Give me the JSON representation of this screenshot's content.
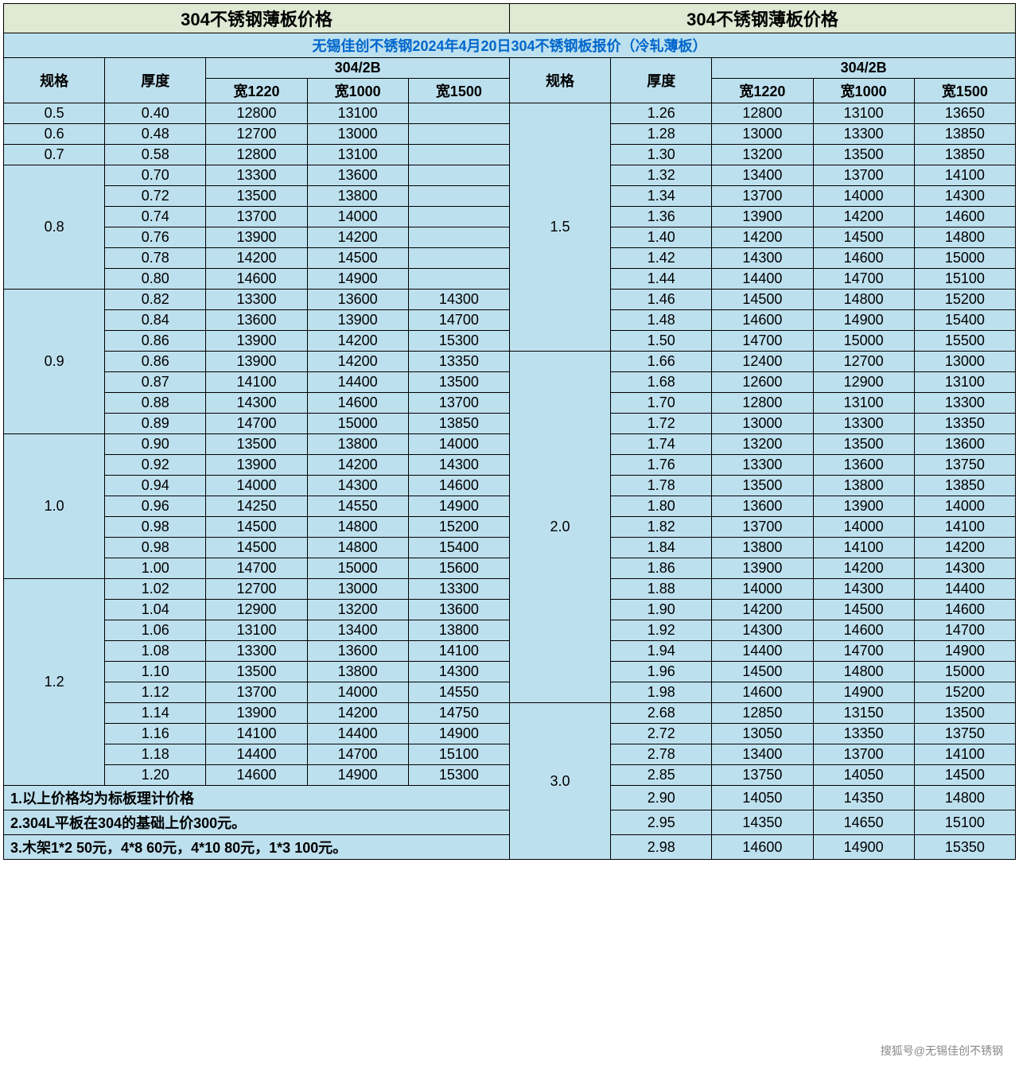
{
  "colors": {
    "title_bg": "#dfe9d3",
    "data_bg": "#bde0ee",
    "border": "#000000",
    "banner_text": "#0066cc"
  },
  "fonts": {
    "title_size_pt": 22,
    "header_size_pt": 18,
    "data_size_pt": 18
  },
  "title_left": "304不锈钢薄板价格",
  "title_right": "304不锈钢薄板价格",
  "banner": "无锡佳创不锈钢2024年4月20日304不锈钢板报价（冷轧薄板）",
  "headers": {
    "spec": "规格",
    "thickness": "厚度",
    "group": "304/2B",
    "w1220": "宽1220",
    "w1000": "宽1000",
    "w1500": "宽1500"
  },
  "notes": [
    "1.以上价格均为标板理计价格",
    "2.304L平板在304的基础上价300元。",
    "3.木架1*2 50元，4*8 60元，4*10 80元，1*3 100元。"
  ],
  "watermark_bottom": "搜狐号@无锡佳创不锈钢",
  "left": [
    {
      "spec": "0.5",
      "rows": [
        {
          "t": "0.40",
          "v": [
            "12800",
            "13100",
            ""
          ]
        }
      ]
    },
    {
      "spec": "0.6",
      "rows": [
        {
          "t": "0.48",
          "v": [
            "12700",
            "13000",
            ""
          ]
        }
      ]
    },
    {
      "spec": "0.7",
      "rows": [
        {
          "t": "0.58",
          "v": [
            "12800",
            "13100",
            ""
          ]
        }
      ]
    },
    {
      "spec": "0.8",
      "rows": [
        {
          "t": "0.70",
          "v": [
            "13300",
            "13600",
            ""
          ]
        },
        {
          "t": "0.72",
          "v": [
            "13500",
            "13800",
            ""
          ]
        },
        {
          "t": "0.74",
          "v": [
            "13700",
            "14000",
            ""
          ]
        },
        {
          "t": "0.76",
          "v": [
            "13900",
            "14200",
            ""
          ]
        },
        {
          "t": "0.78",
          "v": [
            "14200",
            "14500",
            ""
          ]
        },
        {
          "t": "0.80",
          "v": [
            "14600",
            "14900",
            ""
          ]
        }
      ]
    },
    {
      "spec": "0.9",
      "rows": [
        {
          "t": "0.82",
          "v": [
            "13300",
            "13600",
            "14300"
          ]
        },
        {
          "t": "0.84",
          "v": [
            "13600",
            "13900",
            "14700"
          ]
        },
        {
          "t": "0.86",
          "v": [
            "13900",
            "14200",
            "15300"
          ]
        },
        {
          "t": "0.86",
          "v": [
            "13900",
            "14200",
            "13350"
          ]
        },
        {
          "t": "0.87",
          "v": [
            "14100",
            "14400",
            "13500"
          ]
        },
        {
          "t": "0.88",
          "v": [
            "14300",
            "14600",
            "13700"
          ]
        },
        {
          "t": "0.89",
          "v": [
            "14700",
            "15000",
            "13850"
          ]
        }
      ]
    },
    {
      "spec": "1.0",
      "rows": [
        {
          "t": "0.90",
          "v": [
            "13500",
            "13800",
            "14000"
          ]
        },
        {
          "t": "0.92",
          "v": [
            "13900",
            "14200",
            "14300"
          ]
        },
        {
          "t": "0.94",
          "v": [
            "14000",
            "14300",
            "14600"
          ]
        },
        {
          "t": "0.96",
          "v": [
            "14250",
            "14550",
            "14900"
          ]
        },
        {
          "t": "0.98",
          "v": [
            "14500",
            "14800",
            "15200"
          ]
        },
        {
          "t": "0.98",
          "v": [
            "14500",
            "14800",
            "15400"
          ]
        },
        {
          "t": "1.00",
          "v": [
            "14700",
            "15000",
            "15600"
          ]
        }
      ]
    },
    {
      "spec": "1.2",
      "rows": [
        {
          "t": "1.02",
          "v": [
            "12700",
            "13000",
            "13300"
          ]
        },
        {
          "t": "1.04",
          "v": [
            "12900",
            "13200",
            "13600"
          ]
        },
        {
          "t": "1.06",
          "v": [
            "13100",
            "13400",
            "13800"
          ]
        },
        {
          "t": "1.08",
          "v": [
            "13300",
            "13600",
            "14100"
          ]
        },
        {
          "t": "1.10",
          "v": [
            "13500",
            "13800",
            "14300"
          ]
        },
        {
          "t": "1.12",
          "v": [
            "13700",
            "14000",
            "14550"
          ]
        },
        {
          "t": "1.14",
          "v": [
            "13900",
            "14200",
            "14750"
          ]
        },
        {
          "t": "1.16",
          "v": [
            "14100",
            "14400",
            "14900"
          ]
        },
        {
          "t": "1.18",
          "v": [
            "14400",
            "14700",
            "15100"
          ]
        },
        {
          "t": "1.20",
          "v": [
            "14600",
            "14900",
            "15300"
          ]
        }
      ]
    }
  ],
  "right": [
    {
      "spec": "1.5",
      "rows": [
        {
          "t": "1.26",
          "v": [
            "12800",
            "13100",
            "13650"
          ]
        },
        {
          "t": "1.28",
          "v": [
            "13000",
            "13300",
            "13850"
          ]
        },
        {
          "t": "1.30",
          "v": [
            "13200",
            "13500",
            "13850"
          ]
        },
        {
          "t": "1.32",
          "v": [
            "13400",
            "13700",
            "14100"
          ]
        },
        {
          "t": "1.34",
          "v": [
            "13700",
            "14000",
            "14300"
          ]
        },
        {
          "t": "1.36",
          "v": [
            "13900",
            "14200",
            "14600"
          ]
        },
        {
          "t": "1.40",
          "v": [
            "14200",
            "14500",
            "14800"
          ]
        },
        {
          "t": "1.42",
          "v": [
            "14300",
            "14600",
            "15000"
          ]
        },
        {
          "t": "1.44",
          "v": [
            "14400",
            "14700",
            "15100"
          ]
        },
        {
          "t": "1.46",
          "v": [
            "14500",
            "14800",
            "15200"
          ]
        },
        {
          "t": "1.48",
          "v": [
            "14600",
            "14900",
            "15400"
          ]
        },
        {
          "t": "1.50",
          "v": [
            "14700",
            "15000",
            "15500"
          ]
        }
      ]
    },
    {
      "spec": "2.0",
      "rows": [
        {
          "t": "1.66",
          "v": [
            "12400",
            "12700",
            "13000"
          ]
        },
        {
          "t": "1.68",
          "v": [
            "12600",
            "12900",
            "13100"
          ]
        },
        {
          "t": "1.70",
          "v": [
            "12800",
            "13100",
            "13300"
          ]
        },
        {
          "t": "1.72",
          "v": [
            "13000",
            "13300",
            "13350"
          ]
        },
        {
          "t": "1.74",
          "v": [
            "13200",
            "13500",
            "13600"
          ]
        },
        {
          "t": "1.76",
          "v": [
            "13300",
            "13600",
            "13750"
          ]
        },
        {
          "t": "1.78",
          "v": [
            "13500",
            "13800",
            "13850"
          ]
        },
        {
          "t": "1.80",
          "v": [
            "13600",
            "13900",
            "14000"
          ]
        },
        {
          "t": "1.82",
          "v": [
            "13700",
            "14000",
            "14100"
          ]
        },
        {
          "t": "1.84",
          "v": [
            "13800",
            "14100",
            "14200"
          ]
        },
        {
          "t": "1.86",
          "v": [
            "13900",
            "14200",
            "14300"
          ]
        },
        {
          "t": "1.88",
          "v": [
            "14000",
            "14300",
            "14400"
          ]
        },
        {
          "t": "1.90",
          "v": [
            "14200",
            "14500",
            "14600"
          ]
        },
        {
          "t": "1.92",
          "v": [
            "14300",
            "14600",
            "14700"
          ]
        },
        {
          "t": "1.94",
          "v": [
            "14400",
            "14700",
            "14900"
          ]
        },
        {
          "t": "1.96",
          "v": [
            "14500",
            "14800",
            "15000"
          ]
        },
        {
          "t": "1.98",
          "v": [
            "14600",
            "14900",
            "15200"
          ]
        }
      ]
    },
    {
      "spec": "3.0",
      "rows": [
        {
          "t": "2.68",
          "v": [
            "12850",
            "13150",
            "13500"
          ]
        },
        {
          "t": "2.72",
          "v": [
            "13050",
            "13350",
            "13750"
          ]
        },
        {
          "t": "2.78",
          "v": [
            "13400",
            "13700",
            "14100"
          ]
        },
        {
          "t": "2.85",
          "v": [
            "13750",
            "14050",
            "14500"
          ]
        },
        {
          "t": "2.90",
          "v": [
            "14050",
            "14350",
            "14800"
          ]
        },
        {
          "t": "2.95",
          "v": [
            "14350",
            "14650",
            "15100"
          ]
        },
        {
          "t": "2.98",
          "v": [
            "14600",
            "14900",
            "15350"
          ]
        }
      ]
    }
  ]
}
